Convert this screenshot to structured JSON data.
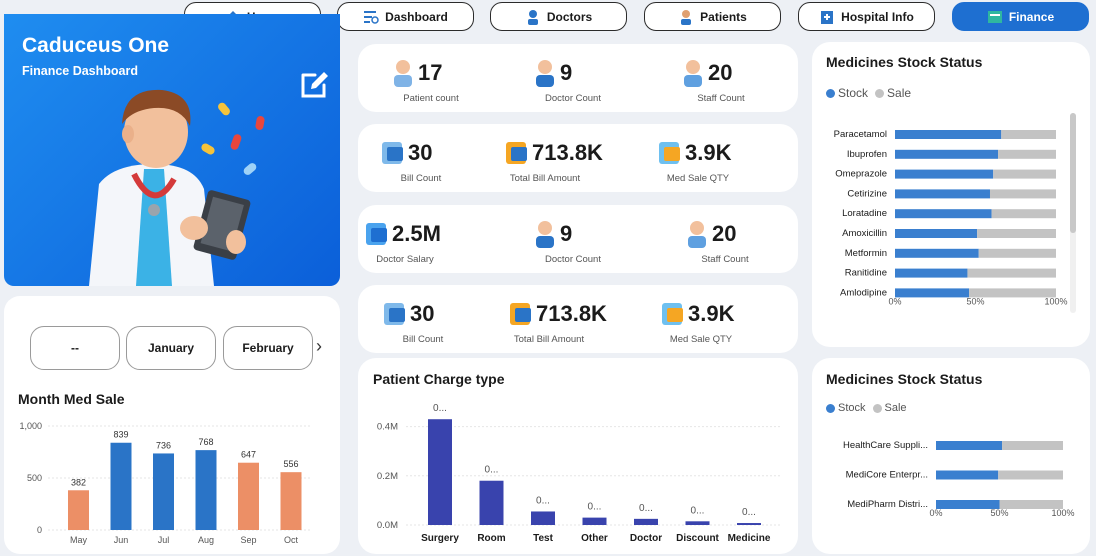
{
  "nav": [
    {
      "label": "Home",
      "icon": "home-icon"
    },
    {
      "label": "Dashboard",
      "icon": "dashboard-icon"
    },
    {
      "label": "Doctors",
      "icon": "doctor-icon"
    },
    {
      "label": "Patients",
      "icon": "patients-icon"
    },
    {
      "label": "Hospital Info",
      "icon": "hospital-icon"
    },
    {
      "label": "Finance",
      "icon": "finance-icon",
      "active": true
    }
  ],
  "hero": {
    "title": "Caduceus One",
    "subtitle": "Finance Dashboard"
  },
  "months": {
    "items": [
      "--",
      "January",
      "February"
    ],
    "next": "›"
  },
  "kpis": [
    [
      {
        "value": "17",
        "label": "Patient count"
      },
      {
        "value": "9",
        "label": "Doctor Count"
      },
      {
        "value": "20",
        "label": "Staff Count"
      }
    ],
    [
      {
        "value": "30",
        "label": "Bill Count"
      },
      {
        "value": "713.8K",
        "label": "Total Bill Amount"
      },
      {
        "value": "3.9K",
        "label": "Med Sale QTY"
      }
    ],
    [
      {
        "value": "2.5M",
        "label": "Doctor Salary"
      },
      {
        "value": "9",
        "label": "Doctor Count"
      },
      {
        "value": "20",
        "label": "Staff Count"
      }
    ],
    [
      {
        "value": "30",
        "label": "Bill Count"
      },
      {
        "value": "713.8K",
        "label": "Total Bill Amount"
      },
      {
        "value": "3.9K",
        "label": "Med Sale QTY"
      }
    ]
  ],
  "colors": {
    "stock": "#3a7fcf",
    "sale": "#c3c3c3",
    "blue": "#2a74c7",
    "orange": "#ec8f66",
    "navy": "#3943ad"
  },
  "chart_data": [
    {
      "type": "bar",
      "title": "Month Med Sale",
      "categories": [
        "May",
        "Jun",
        "Jul",
        "Aug",
        "Sep",
        "Oct"
      ],
      "values": [
        382,
        839,
        736,
        768,
        647,
        556
      ],
      "value_labels": [
        "382",
        "839",
        "736",
        "768",
        "647",
        "556"
      ],
      "highlight": [
        "orange",
        "blue",
        "blue",
        "blue",
        "orange",
        "orange"
      ],
      "yticks": [
        "1,000",
        "500",
        "0"
      ],
      "ylim": [
        0,
        1000
      ]
    },
    {
      "type": "bar",
      "title": "Patient Charge type",
      "categories": [
        "Surgery",
        "Room",
        "Test",
        "Other",
        "Doctor",
        "Discount",
        "Medicine"
      ],
      "values": [
        0.43,
        0.18,
        0.055,
        0.03,
        0.025,
        0.015,
        0.008
      ],
      "value_labels": [
        "0...",
        "0...",
        "0...",
        "0...",
        "0...",
        "0...",
        "0..."
      ],
      "yticks": [
        "0.4M",
        "0.2M",
        "0.0M"
      ],
      "ylim": [
        0,
        0.5
      ]
    },
    {
      "type": "bar",
      "orientation": "horizontal-stacked-100",
      "title": "Medicines Stock Status",
      "legend": [
        "Stock",
        "Sale"
      ],
      "categories": [
        "Paracetamol",
        "Ibuprofen",
        "Omeprazole",
        "Cetirizine",
        "Loratadine",
        "Amoxicillin",
        "Metformin",
        "Ranitidine",
        "Amlodipine"
      ],
      "series": [
        {
          "name": "Stock",
          "values": [
            66,
            64,
            61,
            59,
            60,
            51,
            52,
            45,
            46
          ]
        },
        {
          "name": "Sale",
          "values": [
            34,
            36,
            39,
            41,
            40,
            49,
            48,
            55,
            54
          ]
        }
      ],
      "xticks": [
        "0%",
        "50%",
        "100%"
      ]
    },
    {
      "type": "bar",
      "orientation": "horizontal-stacked-100",
      "title": "Medicines Stock Status",
      "legend": [
        "Stock",
        "Sale"
      ],
      "categories": [
        "HealthCare Suppli...",
        "MediCore Enterpr...",
        "MediPharm Distri..."
      ],
      "series": [
        {
          "name": "Stock",
          "values": [
            52,
            49,
            50
          ]
        },
        {
          "name": "Sale",
          "values": [
            48,
            51,
            50
          ]
        }
      ],
      "xticks": [
        "0%",
        "50%",
        "100%"
      ]
    }
  ]
}
